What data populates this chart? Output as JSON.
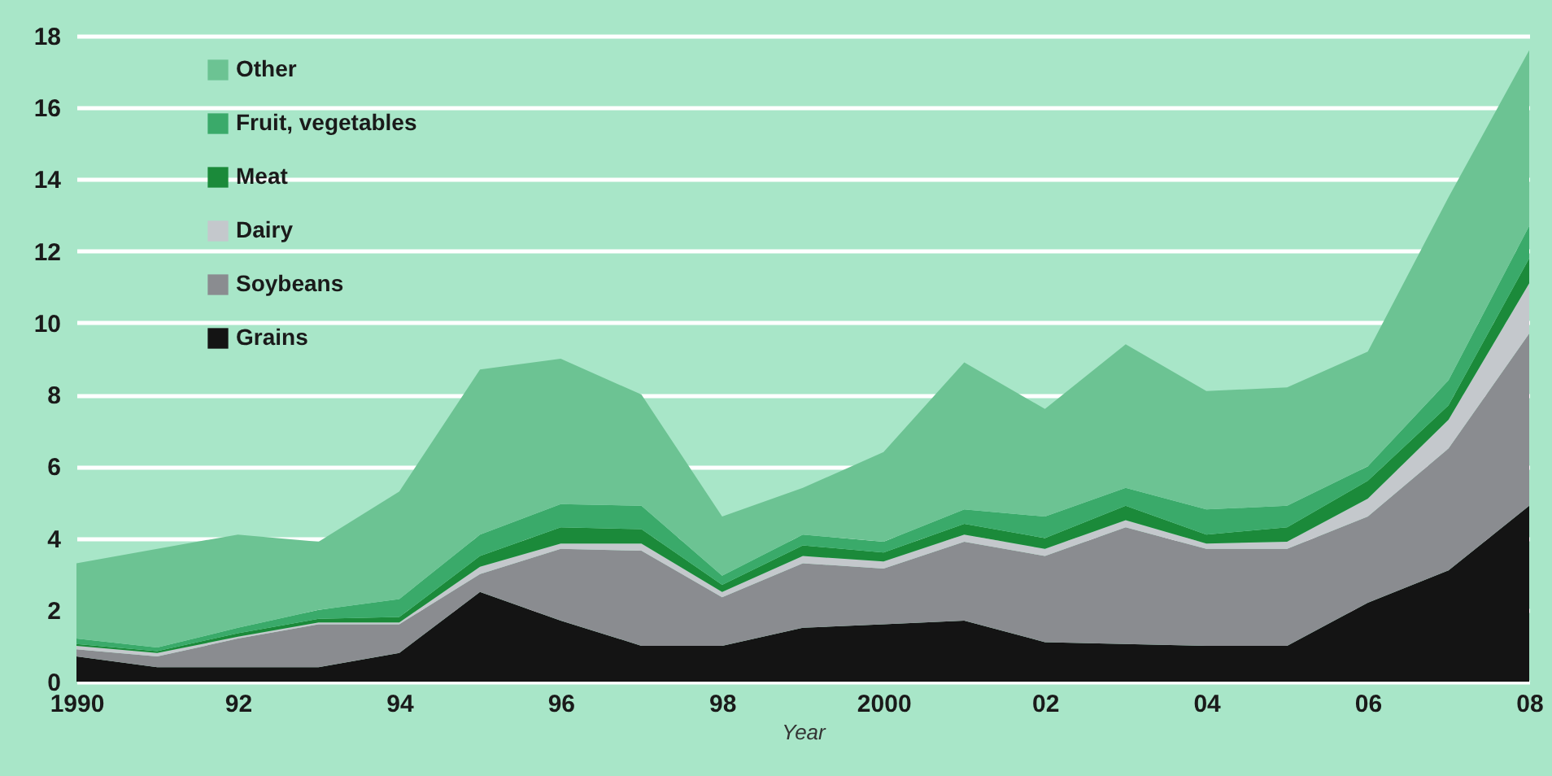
{
  "chart_data": {
    "type": "area",
    "stacked": true,
    "xlabel": "Year",
    "x": [
      1990,
      1991,
      1992,
      1993,
      1994,
      1995,
      1996,
      1997,
      1998,
      1999,
      2000,
      2001,
      2002,
      2003,
      2004,
      2005,
      2006,
      2007,
      2008
    ],
    "xlim": [
      1990,
      2008
    ],
    "xticks": [
      {
        "value": 1990,
        "label": "1990"
      },
      {
        "value": 1992,
        "label": "92"
      },
      {
        "value": 1994,
        "label": "94"
      },
      {
        "value": 1996,
        "label": "96"
      },
      {
        "value": 1998,
        "label": "98"
      },
      {
        "value": 2000,
        "label": "2000"
      },
      {
        "value": 2002,
        "label": "02"
      },
      {
        "value": 2004,
        "label": "04"
      },
      {
        "value": 2006,
        "label": "06"
      },
      {
        "value": 2008,
        "label": "08"
      }
    ],
    "ylim": [
      0,
      18
    ],
    "yticks": [
      0,
      2,
      4,
      6,
      8,
      10,
      12,
      14,
      16,
      18
    ],
    "grid": "y",
    "legend": "top left",
    "series": [
      {
        "name": "Grains",
        "color": "#141414",
        "values": [
          0.7,
          0.4,
          0.4,
          0.4,
          0.8,
          2.5,
          1.7,
          1.0,
          1.0,
          1.5,
          1.6,
          1.7,
          1.1,
          1.05,
          1.0,
          1.0,
          2.2,
          3.1,
          4.9
        ]
      },
      {
        "name": "Soybeans",
        "color": "#8a8c90",
        "values": [
          0.2,
          0.3,
          0.8,
          1.2,
          0.8,
          0.5,
          2.0,
          2.65,
          1.35,
          1.8,
          1.55,
          2.2,
          2.4,
          3.25,
          2.7,
          2.7,
          2.4,
          3.4,
          4.8
        ]
      },
      {
        "name": "Dairy",
        "color": "#c4c8cc",
        "values": [
          0.1,
          0.1,
          0.05,
          0.05,
          0.05,
          0.2,
          0.15,
          0.2,
          0.15,
          0.2,
          0.2,
          0.2,
          0.2,
          0.2,
          0.15,
          0.2,
          0.5,
          0.8,
          1.4
        ]
      },
      {
        "name": "Meat",
        "color": "#1b8a3a",
        "values": [
          0.05,
          0.05,
          0.1,
          0.1,
          0.15,
          0.3,
          0.45,
          0.4,
          0.2,
          0.3,
          0.25,
          0.3,
          0.3,
          0.4,
          0.25,
          0.4,
          0.5,
          0.4,
          0.7
        ]
      },
      {
        "name": "Fruit, vegetables",
        "color": "#3aaa6a",
        "values": [
          0.15,
          0.1,
          0.15,
          0.25,
          0.5,
          0.6,
          0.65,
          0.65,
          0.25,
          0.3,
          0.3,
          0.4,
          0.6,
          0.5,
          0.7,
          0.6,
          0.4,
          0.7,
          0.9
        ]
      },
      {
        "name": "Other",
        "color": "#6cc393",
        "values": [
          2.1,
          2.75,
          2.6,
          1.9,
          3.0,
          4.6,
          4.05,
          3.1,
          1.65,
          1.3,
          2.5,
          4.1,
          3.0,
          4.0,
          3.3,
          3.3,
          3.2,
          5.1,
          4.9
        ]
      }
    ]
  }
}
